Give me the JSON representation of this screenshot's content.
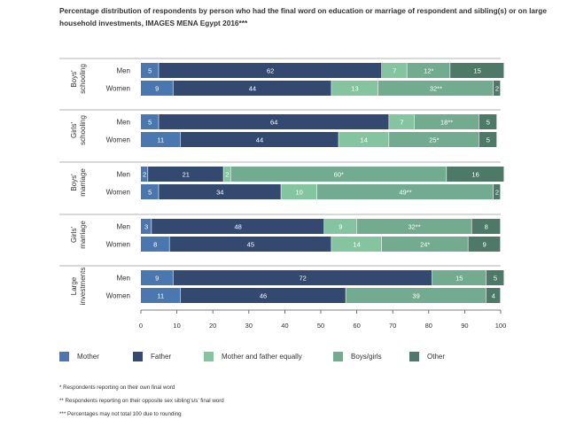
{
  "title": "Percentage distribution of respondents by person who had the final word on education or marriage of respondent and sibling(s) or on large household investments, IMAGES MENA Egypt 2016***",
  "colors": [
    "#4a77b0",
    "#344970",
    "#85c4a1",
    "#73ab91",
    "#4e7969"
  ],
  "legend": [
    "Mother",
    "Father",
    "Mother and father equally",
    "Boys/girls",
    "Other"
  ],
  "chart_data": {
    "type": "bar",
    "orientation": "horizontal",
    "stacked": true,
    "xlim": [
      0,
      100
    ],
    "xticks": [
      "0",
      "10",
      "20",
      "30",
      "40",
      "50",
      "60",
      "70",
      "80",
      "90",
      "100"
    ],
    "series_names": [
      "Mother",
      "Father",
      "Mother and father equally",
      "Boys/girls",
      "Other"
    ],
    "groups": [
      {
        "label": [
          "Boys'",
          "schooling"
        ],
        "rows": [
          {
            "label": "Men",
            "values": [
              5,
              62,
              7,
              12,
              15
            ],
            "labels": [
              "5",
              "62",
              "7",
              "12*",
              "15"
            ]
          },
          {
            "label": "Women",
            "values": [
              9,
              44,
              13,
              32,
              2
            ],
            "labels": [
              "9",
              "44",
              "13",
              "32**",
              "2"
            ]
          }
        ]
      },
      {
        "label": [
          "Girls'",
          "schooling"
        ],
        "rows": [
          {
            "label": "Men",
            "values": [
              5,
              64,
              7,
              18,
              5
            ],
            "labels": [
              "5",
              "64",
              "7",
              "18**",
              "5"
            ]
          },
          {
            "label": "Women",
            "values": [
              11,
              44,
              14,
              25,
              5
            ],
            "labels": [
              "11",
              "44",
              "14",
              "25*",
              "5"
            ]
          }
        ]
      },
      {
        "label": [
          "Boys'",
          "marriage"
        ],
        "rows": [
          {
            "label": "Men",
            "values": [
              2,
              21,
              2,
              60,
              16
            ],
            "labels": [
              "2",
              "21",
              "2",
              "60*",
              "16"
            ]
          },
          {
            "label": "Women",
            "values": [
              5,
              34,
              10,
              49,
              2
            ],
            "labels": [
              "5",
              "34",
              "10",
              "49**",
              "2"
            ]
          }
        ]
      },
      {
        "label": [
          "Girls'",
          "marriage"
        ],
        "rows": [
          {
            "label": "Men",
            "values": [
              3,
              48,
              9,
              32,
              8
            ],
            "labels": [
              "3",
              "48",
              "9",
              "32**",
              "8"
            ]
          },
          {
            "label": "Women",
            "values": [
              8,
              45,
              14,
              24,
              9
            ],
            "labels": [
              "8",
              "45",
              "14",
              "24*",
              "9"
            ]
          }
        ]
      },
      {
        "label": [
          "Large",
          "investments"
        ],
        "rows": [
          {
            "label": "Men",
            "values": [
              9,
              72,
              0,
              15,
              5
            ],
            "labels": [
              "9",
              "72",
              "",
              "15",
              "5"
            ]
          },
          {
            "label": "Women",
            "values": [
              11,
              46,
              0,
              39,
              4
            ],
            "labels": [
              "11",
              "46",
              "",
              "39",
              "4"
            ]
          }
        ]
      }
    ]
  },
  "notes": [
    "* Respondents reporting on their own final word",
    "** Respondents reporting on their opposite sex sibling’s/s’ final word",
    "*** Percentages may not total 100 due to rounding"
  ]
}
